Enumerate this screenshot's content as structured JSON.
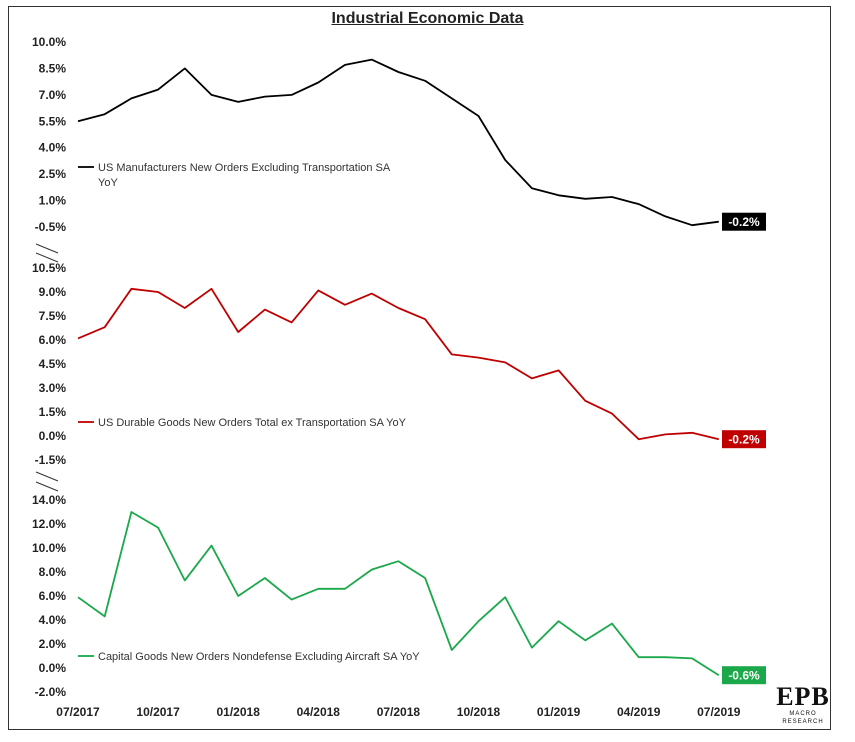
{
  "title": "Industrial Economic Data",
  "logo": {
    "main": "EPB",
    "sub": "MACRO RESEARCH"
  },
  "chart_data": {
    "type": "line",
    "x": [
      "07/2017",
      "08/2017",
      "09/2017",
      "10/2017",
      "11/2017",
      "12/2017",
      "01/2018",
      "02/2018",
      "03/2018",
      "04/2018",
      "05/2018",
      "06/2018",
      "07/2018",
      "08/2018",
      "09/2018",
      "10/2018",
      "11/2018",
      "12/2018",
      "01/2019",
      "02/2019",
      "03/2019",
      "04/2019",
      "05/2019",
      "06/2019",
      "07/2019"
    ],
    "x_tick_labels": [
      "07/2017",
      "10/2017",
      "01/2018",
      "04/2018",
      "07/2018",
      "10/2018",
      "01/2019",
      "04/2019",
      "07/2019"
    ],
    "panels": [
      {
        "name": "US Manufacturers New Orders Excluding Transportation SA YoY",
        "color": "#000000",
        "ylim": [
          -0.5,
          10.0
        ],
        "ticks": [
          "10.0%",
          "8.5%",
          "7.0%",
          "5.5%",
          "4.0%",
          "2.5%",
          "1.0%",
          "-0.5%"
        ],
        "values": [
          5.5,
          5.9,
          6.8,
          7.3,
          8.5,
          7.0,
          6.6,
          6.9,
          7.0,
          7.7,
          8.7,
          9.0,
          8.3,
          7.8,
          6.8,
          5.8,
          3.3,
          1.7,
          1.3,
          1.1,
          1.2,
          0.8,
          0.1,
          -0.4,
          -0.2
        ],
        "end_label": "-0.2%"
      },
      {
        "name": "US Durable Goods New Orders Total ex Transportation SA YoY",
        "color": "#c00000",
        "ylim": [
          -1.5,
          10.5
        ],
        "ticks": [
          "10.5%",
          "9.0%",
          "7.5%",
          "6.0%",
          "4.5%",
          "3.0%",
          "1.5%",
          "0.0%",
          "-1.5%"
        ],
        "values": [
          6.1,
          6.8,
          9.2,
          9.0,
          8.0,
          9.2,
          6.5,
          7.9,
          7.1,
          9.1,
          8.2,
          8.9,
          8.0,
          7.3,
          5.1,
          4.9,
          4.6,
          3.6,
          4.1,
          2.2,
          1.4,
          -0.2,
          0.1,
          0.2,
          -0.2
        ],
        "end_label": "-0.2%"
      },
      {
        "name": "Capital Goods New Orders Nondefense Excluding Aircraft SA YoY",
        "color": "#1aa84a",
        "ylim": [
          -2.0,
          14.0
        ],
        "ticks": [
          "14.0%",
          "12.0%",
          "10.0%",
          "8.0%",
          "6.0%",
          "4.0%",
          "2.0%",
          "0.0%",
          "-2.0%"
        ],
        "values": [
          5.9,
          4.3,
          13.0,
          11.7,
          7.3,
          10.2,
          6.0,
          7.5,
          5.7,
          6.6,
          6.6,
          8.2,
          8.9,
          7.5,
          1.5,
          3.9,
          5.9,
          1.7,
          3.9,
          2.3,
          3.7,
          0.9,
          0.9,
          0.8,
          -0.6
        ],
        "end_label": "-0.6%"
      }
    ]
  }
}
